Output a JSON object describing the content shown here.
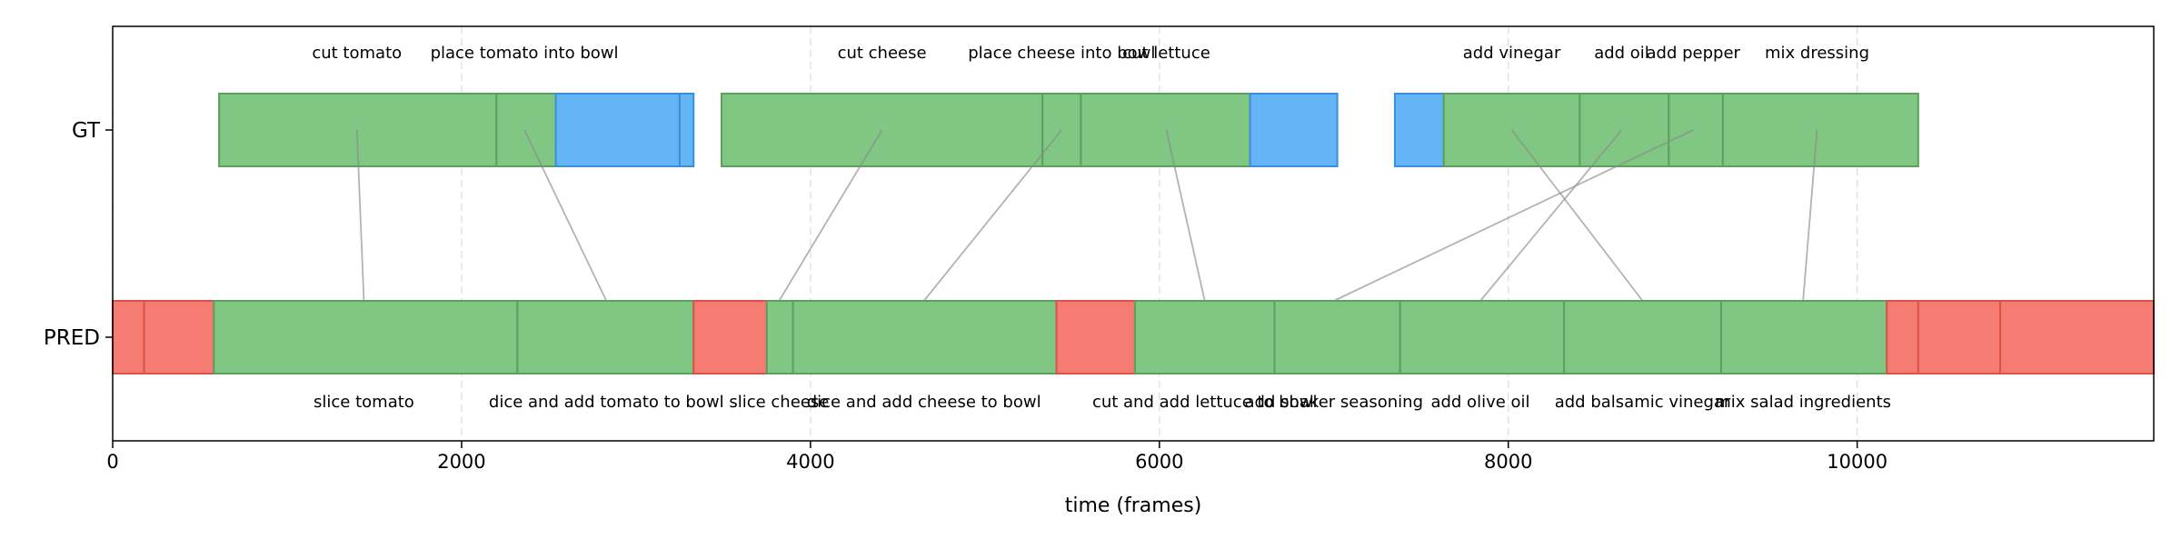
{
  "chart_data": {
    "type": "timeline",
    "xlabel": "time (frames)",
    "xlim": [
      0,
      11700
    ],
    "xticks": [
      0,
      2000,
      4000,
      6000,
      8000,
      10000
    ],
    "tick_labels": [
      "0",
      "2000",
      "4000",
      "6000",
      "8000",
      "10000"
    ],
    "grid": "x dashed",
    "colors": {
      "matched": "#81c784",
      "unmatched_gt": "#64b5f6",
      "unmatched_pred": "#f47c72"
    },
    "rows": [
      {
        "name": "GT",
        "label": "GT",
        "segments": [
          {
            "start": 610,
            "end": 2200,
            "status": "matched"
          },
          {
            "start": 2200,
            "end": 2540,
            "status": "matched"
          },
          {
            "start": 2540,
            "end": 3250,
            "status": "unmatched_gt"
          },
          {
            "start": 3250,
            "end": 3330,
            "status": "unmatched_gt"
          },
          {
            "start": 3490,
            "end": 5330,
            "status": "matched"
          },
          {
            "start": 5330,
            "end": 5550,
            "status": "matched"
          },
          {
            "start": 5550,
            "end": 6520,
            "status": "matched"
          },
          {
            "start": 6520,
            "end": 7020,
            "status": "unmatched_gt"
          },
          {
            "start": 7350,
            "end": 7630,
            "status": "unmatched_gt"
          },
          {
            "start": 7630,
            "end": 8410,
            "status": "matched"
          },
          {
            "start": 8410,
            "end": 8920,
            "status": "matched"
          },
          {
            "start": 8920,
            "end": 9230,
            "status": "matched"
          },
          {
            "start": 9230,
            "end": 10350,
            "status": "matched"
          }
        ],
        "labels": [
          {
            "text": "cut tomato",
            "x": 1400
          },
          {
            "text": "place tomato into bowl",
            "x": 2360
          },
          {
            "text": "cut cheese",
            "x": 4410
          },
          {
            "text": "place cheese into bowl",
            "x": 5440
          },
          {
            "text": "cut lettuce",
            "x": 6040
          },
          {
            "text": "add vinegar",
            "x": 8020
          },
          {
            "text": "add oil",
            "x": 8650
          },
          {
            "text": "add pepper",
            "x": 9060
          },
          {
            "text": "mix dressing",
            "x": 9770
          }
        ]
      },
      {
        "name": "PRED",
        "label": "PRED",
        "segments": [
          {
            "start": 0,
            "end": 180,
            "status": "unmatched_pred"
          },
          {
            "start": 180,
            "end": 580,
            "status": "unmatched_pred"
          },
          {
            "start": 580,
            "end": 2320,
            "status": "matched"
          },
          {
            "start": 2320,
            "end": 3330,
            "status": "matched"
          },
          {
            "start": 3330,
            "end": 3750,
            "status": "unmatched_pred"
          },
          {
            "start": 3750,
            "end": 3900,
            "status": "matched"
          },
          {
            "start": 3900,
            "end": 5410,
            "status": "matched"
          },
          {
            "start": 5410,
            "end": 5860,
            "status": "unmatched_pred"
          },
          {
            "start": 5860,
            "end": 6660,
            "status": "matched"
          },
          {
            "start": 6660,
            "end": 7380,
            "status": "matched"
          },
          {
            "start": 7380,
            "end": 8320,
            "status": "matched"
          },
          {
            "start": 8320,
            "end": 9220,
            "status": "matched"
          },
          {
            "start": 9220,
            "end": 10170,
            "status": "matched"
          },
          {
            "start": 10170,
            "end": 10350,
            "status": "unmatched_pred"
          },
          {
            "start": 10350,
            "end": 10820,
            "status": "unmatched_pred"
          },
          {
            "start": 10820,
            "end": 11700,
            "status": "unmatched_pred"
          }
        ],
        "labels": [
          {
            "text": "slice tomato",
            "x": 1440
          },
          {
            "text": "dice and add tomato to bowl",
            "x": 2830
          },
          {
            "text": "slice cheese",
            "x": 3820
          },
          {
            "text": "dice and add cheese to bowl",
            "x": 4650
          },
          {
            "text": "cut and add lettuce to bowl",
            "x": 6260
          },
          {
            "text": "add shaker seasoning",
            "x": 7000
          },
          {
            "text": "add olive oil",
            "x": 7840
          },
          {
            "text": "add balsamic vinegar",
            "x": 8770
          },
          {
            "text": "mix salad ingredients",
            "x": 9690
          }
        ]
      }
    ],
    "matches": [
      {
        "gt": "cut tomato",
        "pred": "slice tomato"
      },
      {
        "gt": "place tomato into bowl",
        "pred": "dice and add tomato to bowl"
      },
      {
        "gt": "cut cheese",
        "pred": "slice cheese"
      },
      {
        "gt": "place cheese into bowl",
        "pred": "dice and add cheese to bowl"
      },
      {
        "gt": "cut lettuce",
        "pred": "cut and add lettuce to bowl"
      },
      {
        "gt": "add vinegar",
        "pred": "add balsamic vinegar"
      },
      {
        "gt": "add oil",
        "pred": "add olive oil"
      },
      {
        "gt": "add pepper",
        "pred": "add shaker seasoning"
      },
      {
        "gt": "mix dressing",
        "pred": "mix salad ingredients"
      }
    ]
  }
}
